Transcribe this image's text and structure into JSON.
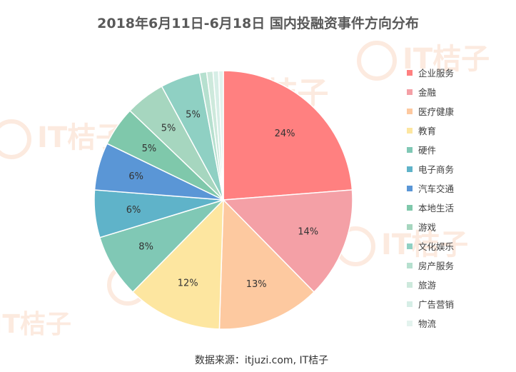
{
  "chart_data": {
    "type": "pie",
    "title": "2018年6月11日-6月18日  国内投融资事件方向分布",
    "categories": [
      "企业服务",
      "金融",
      "医疗健康",
      "教育",
      "硬件",
      "电子商务",
      "汽车交通",
      "本地生活",
      "游戏",
      "文化娱乐",
      "房产服务",
      "旅游",
      "广告营销",
      "物流"
    ],
    "values": [
      24,
      14,
      13,
      12,
      8,
      6,
      6,
      5,
      5,
      5,
      0.9,
      0.8,
      0.7,
      0.6
    ],
    "data_labels": [
      "24%",
      "14%",
      "13%",
      "12%",
      "8%",
      "6%",
      "6%",
      "5%",
      "5%",
      "5%",
      "",
      "",
      "",
      ""
    ],
    "colors": [
      "#ff8080",
      "#f4a0a6",
      "#fdc9a0",
      "#fde6a0",
      "#80c8b5",
      "#5fb3c9",
      "#5a96d6",
      "#7fc8ab",
      "#a6d6bf",
      "#8fd0c3",
      "#b6e0cf",
      "#cde9dc",
      "#d6eee6",
      "#e3f3ee"
    ],
    "legend_position": "right",
    "source": "数据来源：itjuzi.com, IT桔子"
  },
  "watermark": {
    "text": "IT桔子"
  }
}
